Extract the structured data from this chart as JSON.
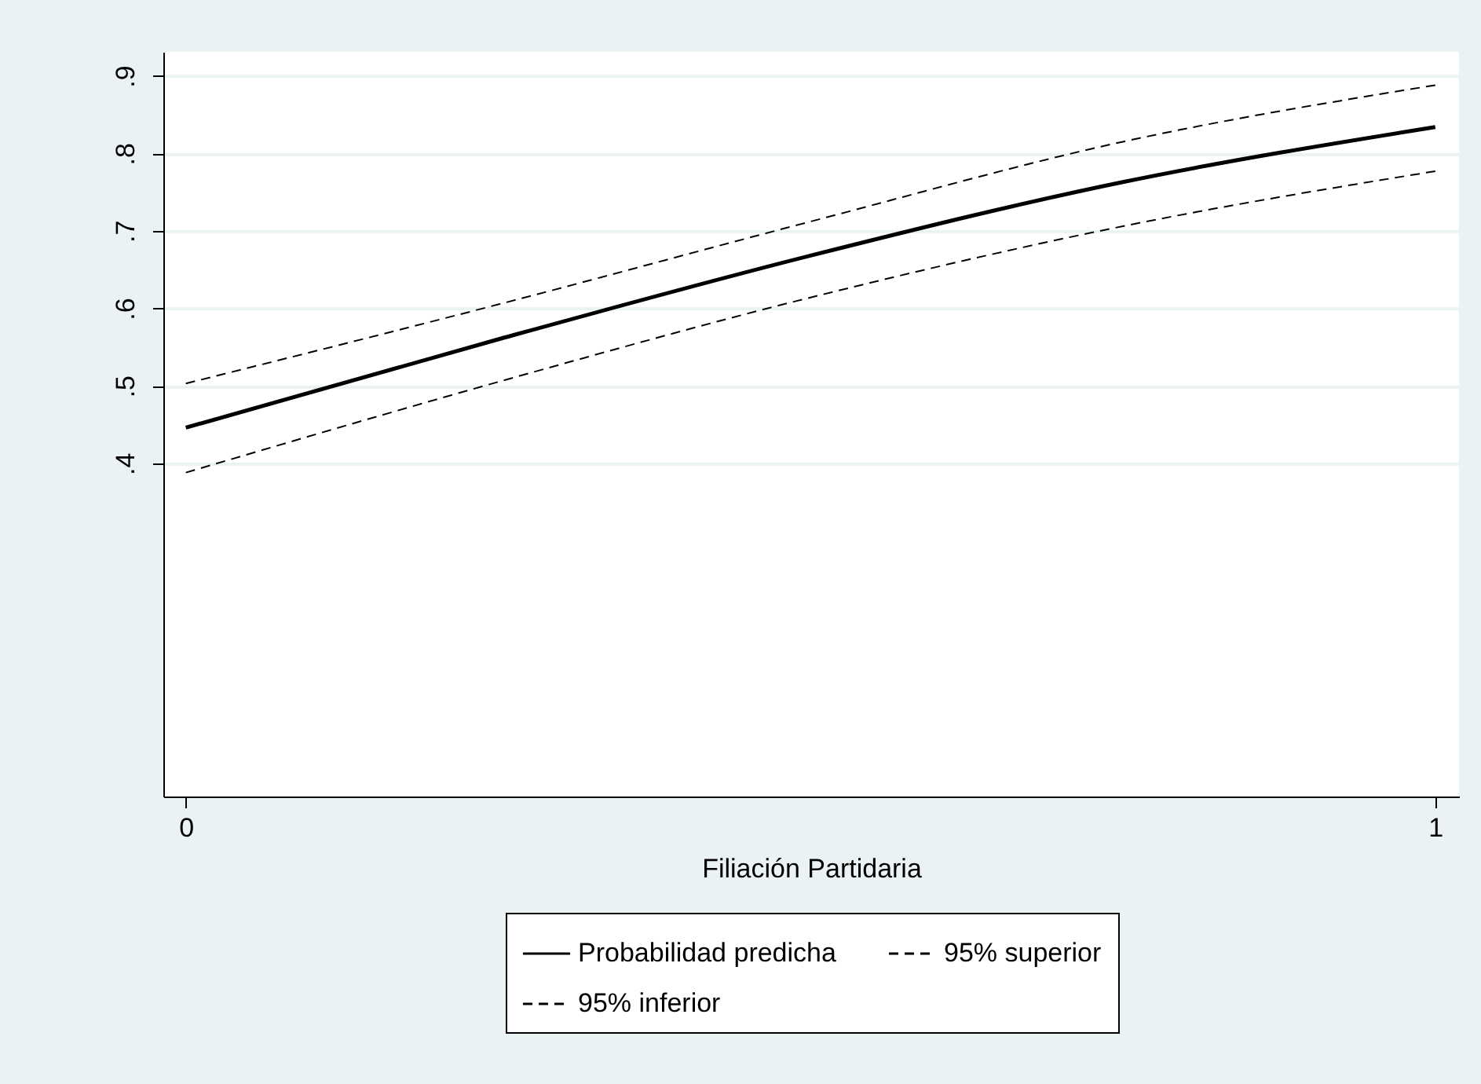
{
  "chart_data": {
    "type": "line",
    "xlabel": "Filiación Partidaria",
    "x": [
      0,
      0.25,
      0.5,
      0.75,
      1
    ],
    "series": [
      {
        "name": "Probabilidad predicha",
        "color": "#000000",
        "line_style": "solid",
        "values": [
          0.446,
          0.56,
          0.668,
          0.763,
          0.834
        ]
      },
      {
        "name": "95% superior",
        "color": "#000000",
        "line_style": "dashed",
        "values": [
          0.503,
          0.605,
          0.712,
          0.815,
          0.888
        ]
      },
      {
        "name": "95% inferior",
        "color": "#000000",
        "line_style": "dashed",
        "values": [
          0.388,
          0.505,
          0.614,
          0.706,
          0.777
        ]
      }
    ],
    "xlim": [
      -0.018,
      1.019
    ],
    "xticks": [
      0,
      1
    ],
    "ylim": [
      -0.03,
      0.931
    ],
    "yticks": [
      {
        "value": 0.4,
        "label": ".4"
      },
      {
        "value": 0.5,
        "label": ".5"
      },
      {
        "value": 0.6,
        "label": ".6"
      },
      {
        "value": 0.7,
        "label": ".7"
      },
      {
        "value": 0.8,
        "label": ".8"
      },
      {
        "value": 0.9,
        "label": ".9"
      }
    ],
    "grid": "y",
    "legend": "bottom",
    "marker": "none"
  }
}
